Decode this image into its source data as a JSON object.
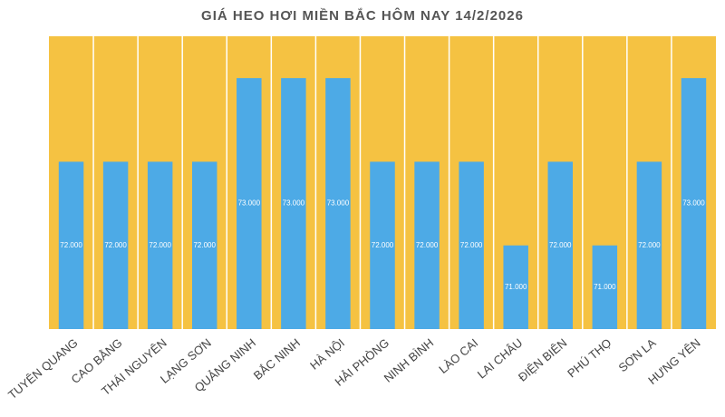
{
  "chart_data": {
    "type": "bar",
    "title": "GIÁ HEO HƠI MIỀN BẮC HÔM NAY 14/2/2026",
    "categories": [
      "TUYÊN QUANG",
      "CAO BẰNG",
      "THÁI NGUYÊN",
      "LẠNG SƠN",
      "QUẢNG NINH",
      "BẮC NINH",
      "HÀ NỘI",
      "HẢI PHÒNG",
      "NINH BÌNH",
      "LÀO CAI",
      "LAI CHÂU",
      "ĐIỆN BIÊN",
      "PHÚ THỌ",
      "SƠN LA",
      "HƯNG YÊN"
    ],
    "values": [
      72000,
      72000,
      72000,
      72000,
      73000,
      73000,
      73000,
      72000,
      72000,
      72000,
      71000,
      72000,
      71000,
      72000,
      73000
    ],
    "value_labels": [
      "72.000",
      "72.000",
      "72.000",
      "72.000",
      "73.000",
      "73.000",
      "73.000",
      "72.000",
      "72.000",
      "72.000",
      "71.000",
      "72.000",
      "71.000",
      "72.000",
      "73.000"
    ],
    "color": "#4daae6",
    "plot_background": "#f5c242",
    "ylim": [
      70000,
      73500
    ]
  }
}
